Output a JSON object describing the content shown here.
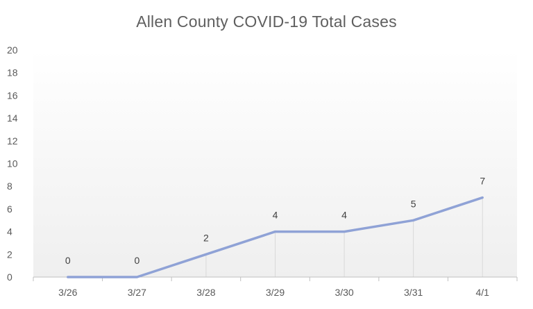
{
  "chart_data": {
    "type": "line",
    "title": "Allen County COVID-19 Total Cases",
    "xlabel": "",
    "ylabel": "",
    "categories": [
      "3/26",
      "3/27",
      "3/28",
      "3/29",
      "3/30",
      "3/31",
      "4/1"
    ],
    "series": [
      {
        "values": [
          0,
          0,
          2,
          4,
          4,
          5,
          7
        ]
      }
    ],
    "ylim": [
      0,
      20
    ],
    "yticks": [
      0,
      2,
      4,
      6,
      8,
      10,
      12,
      14,
      16,
      18,
      20
    ],
    "grid": false,
    "drop_lines": true,
    "data_labels": true,
    "legend": "none"
  },
  "colors": {
    "line": "#8fa2d6",
    "plot_gradient_top": "#ffffff",
    "plot_gradient_bottom": "#efefef",
    "axis": "#bfbfbf",
    "drop_line": "#d9d9d9"
  }
}
